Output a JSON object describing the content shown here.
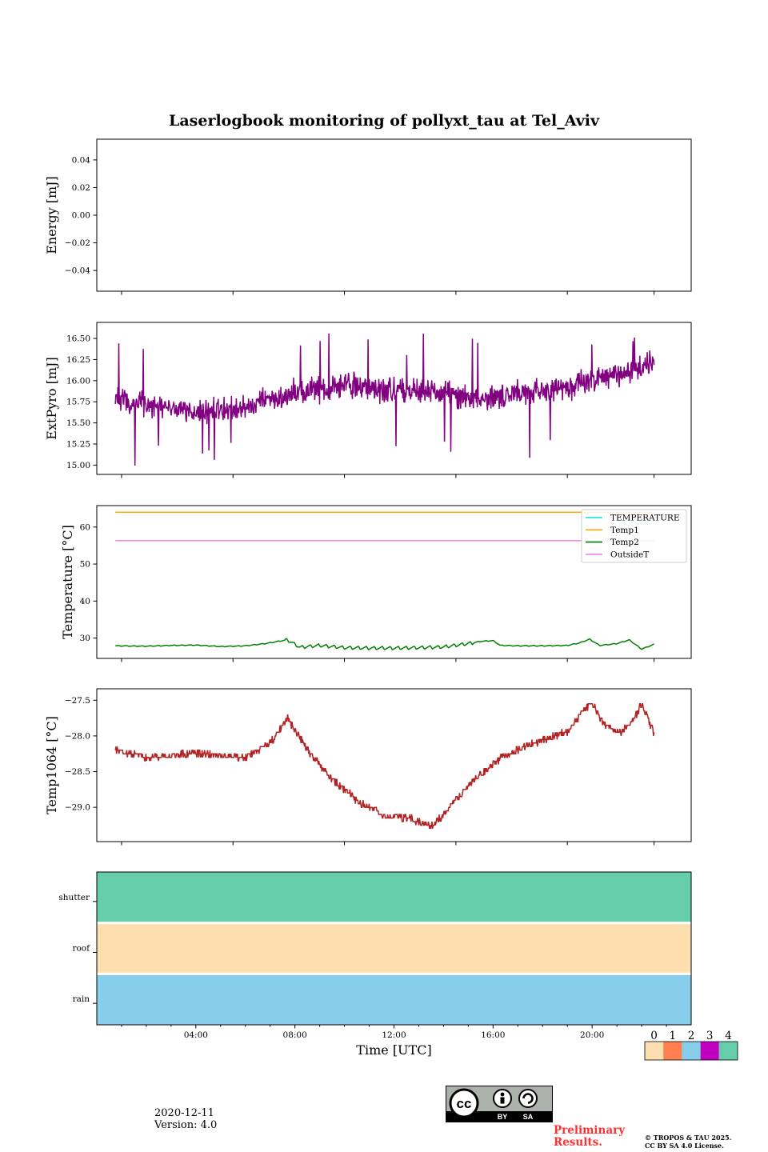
{
  "header": {
    "title": "Laserlogbook monitoring of pollyxt_tau at Tel_Aviv"
  },
  "chart_data": [
    {
      "type": "line",
      "ylabel": "Energy [mJ]",
      "yticks": [
        0.04,
        0.02,
        0.0,
        -0.02,
        -0.04
      ],
      "ytick_labels": [
        "0.04",
        "0.02",
        "0.00",
        "−0.02",
        "−0.04"
      ],
      "ylim": [
        -0.055,
        0.055
      ],
      "series": []
    },
    {
      "type": "line",
      "ylabel": "ExtPyro [mJ]",
      "yticks": [
        16.5,
        16.25,
        16.0,
        15.75,
        15.5,
        15.25,
        15.0
      ],
      "ytick_labels": [
        "16.50",
        "16.25",
        "16.00",
        "15.75",
        "15.50",
        "15.25",
        "15.00"
      ],
      "ylim": [
        14.89,
        16.69
      ],
      "series": [
        {
          "color": "#800080",
          "anchors_x": [
            0.75,
            2,
            3,
            4,
            5,
            6,
            7,
            8,
            9,
            10,
            11,
            12,
            13,
            14,
            15,
            16,
            17,
            18,
            19,
            20,
            21,
            22,
            22.5
          ],
          "anchors_y": [
            15.78,
            15.72,
            15.65,
            15.62,
            15.64,
            15.7,
            15.78,
            15.85,
            15.9,
            15.95,
            15.92,
            15.9,
            15.88,
            15.85,
            15.8,
            15.82,
            15.85,
            15.88,
            15.92,
            16.0,
            16.08,
            16.15,
            16.25
          ],
          "noise": 0.14,
          "spike_min": 14.96,
          "spike_max": 16.58
        }
      ]
    },
    {
      "type": "line",
      "ylabel": "Temperature [°C]",
      "yticks": [
        60,
        50,
        40,
        30
      ],
      "ytick_labels": [
        "60",
        "50",
        "40",
        "30"
      ],
      "ylim": [
        24.5,
        65.8
      ],
      "legend": {
        "placement": "upper right",
        "entries": [
          "TEMPERATURE",
          "Temp1",
          "Temp2",
          "OutsideT"
        ]
      },
      "series": [
        {
          "name": "TEMPERATURE",
          "color": "#00e5e5",
          "x": [],
          "y": []
        },
        {
          "name": "Temp1",
          "color": "#ffa500",
          "x": [
            0.75,
            22.5
          ],
          "y": [
            64.0,
            64.0
          ]
        },
        {
          "name": "Temp2",
          "color": "#008000",
          "x": [
            0.75,
            2,
            3,
            4,
            5,
            6,
            6.8,
            7.5,
            7.7,
            8.2,
            9,
            10,
            11,
            12,
            13,
            14,
            15,
            15.5,
            16,
            16.3,
            17,
            18,
            19,
            19.5,
            19.9,
            20.3,
            21,
            21.5,
            22,
            22.5
          ],
          "y": [
            27.9,
            27.8,
            28.0,
            28.1,
            27.7,
            27.9,
            28.5,
            29.3,
            29.5,
            27.5,
            28.0,
            27.4,
            27.3,
            27.3,
            27.4,
            27.6,
            28.5,
            29.1,
            29.3,
            28.0,
            27.9,
            27.9,
            28.0,
            28.7,
            29.7,
            28.0,
            28.5,
            29.5,
            27.0,
            28.3
          ],
          "wiggle": 0.9
        },
        {
          "name": "OutsideT",
          "color": "#ee82ee",
          "x": [
            0.75,
            22.5
          ],
          "y": [
            56.3,
            56.3
          ]
        }
      ]
    },
    {
      "type": "line",
      "ylabel": "Temp1064 [°C]",
      "yticks": [
        -27.5,
        -28.0,
        -28.5,
        -29.0
      ],
      "ytick_labels": [
        "−27.5",
        "−28.0",
        "−28.5",
        "−29.0"
      ],
      "ylim": [
        -29.48,
        -27.34
      ],
      "series": [
        {
          "color": "#b22222",
          "x": [
            0.75,
            2,
            4,
            6,
            7,
            7.7,
            8.5,
            9.5,
            10.5,
            11.5,
            12.5,
            13.5,
            14,
            15,
            16,
            16.5,
            17,
            18,
            19,
            19.7,
            20,
            20.5,
            21.2,
            21.7,
            22,
            22.5
          ],
          "y": [
            -28.2,
            -28.3,
            -28.25,
            -28.3,
            -28.1,
            -27.75,
            -28.2,
            -28.6,
            -28.9,
            -29.1,
            -29.15,
            -29.25,
            -29.1,
            -28.7,
            -28.4,
            -28.25,
            -28.2,
            -28.05,
            -27.95,
            -27.6,
            -27.55,
            -27.85,
            -27.95,
            -27.75,
            -27.55,
            -27.95
          ],
          "noise": 0.05,
          "step": 0.05
        }
      ]
    },
    {
      "type": "heatmap",
      "categories": [
        "shutter",
        "roof",
        "rain"
      ],
      "values": [
        4,
        0,
        2
      ],
      "colorbar": {
        "labels": [
          "0",
          "1",
          "2",
          "3",
          "4"
        ],
        "colors": [
          "#fddeae",
          "#ff7f50",
          "#87ceeb",
          "#c000c0",
          "#66cdaa"
        ]
      },
      "xlabel": "Time [UTC]",
      "xtick_labels": [
        "04:00",
        "08:00",
        "12:00",
        "16:00",
        "20:00"
      ],
      "xticks": [
        4,
        8,
        12,
        16,
        20
      ],
      "xlim": [
        0,
        24
      ]
    }
  ],
  "footer": {
    "date": "2020-12-11",
    "version": "Version: 4.0",
    "preliminary_line1": "Preliminary",
    "preliminary_line2": "Results.",
    "copyright_line1": "© TROPOS & TAU 2025.",
    "copyright_line2": "CC BY SA 4.0 License.",
    "license_by": "BY",
    "license_sa": "SA",
    "license_icon": "cc-by-sa-icon"
  }
}
